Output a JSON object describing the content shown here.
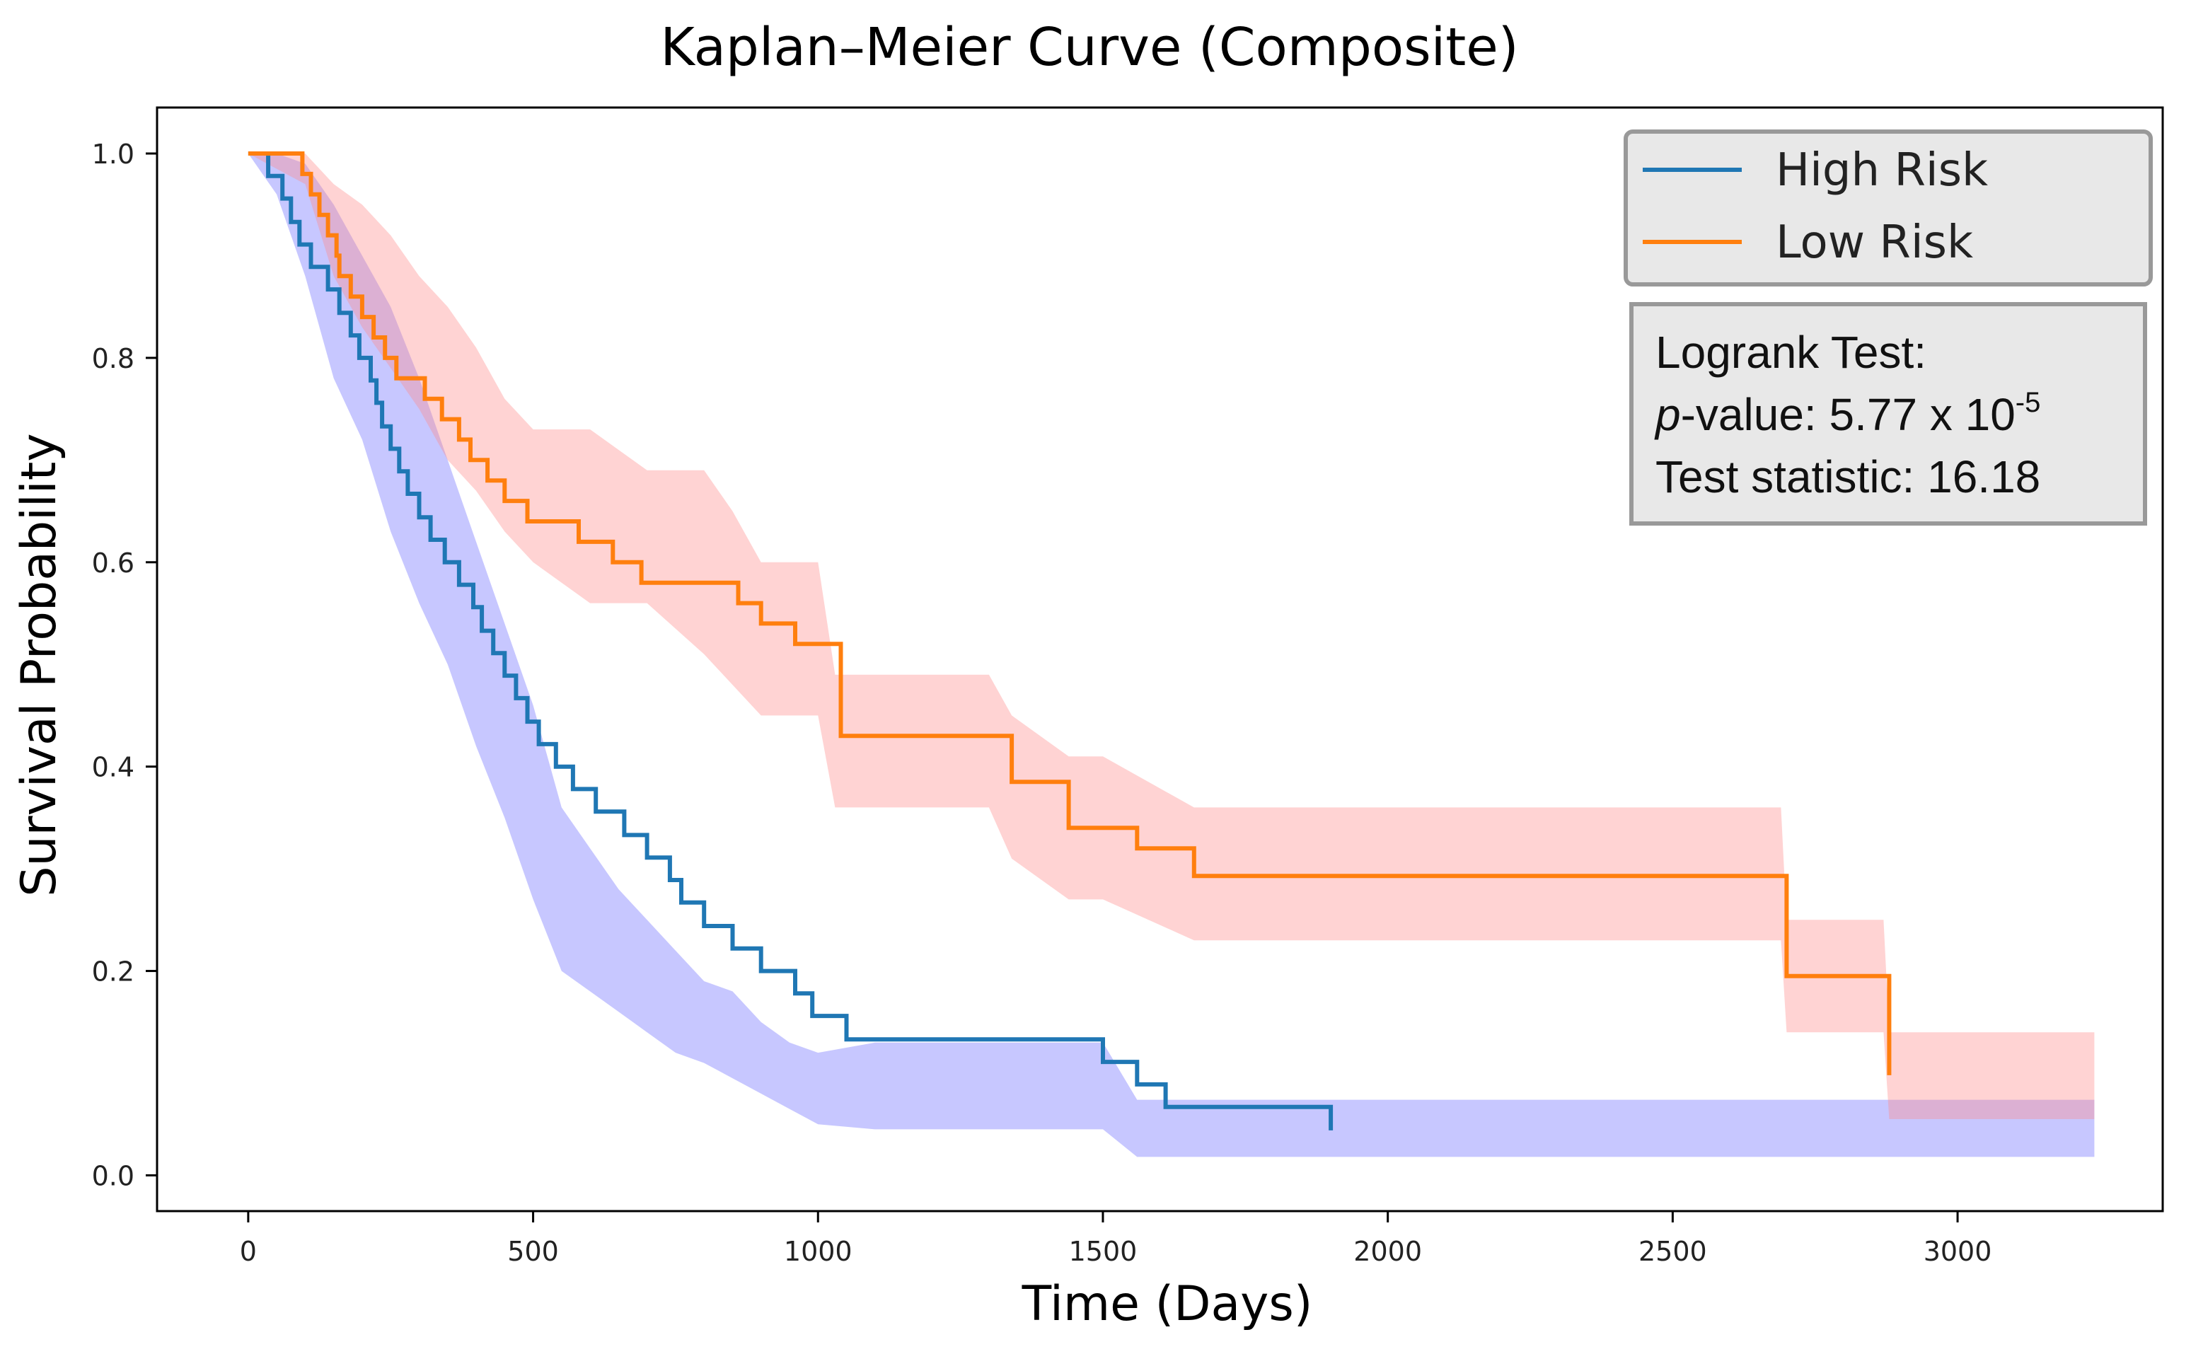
{
  "chart_data": {
    "type": "line",
    "title": "Kaplan–Meier Curve (Composite)",
    "xlabel": "Time (Days)",
    "ylabel": "Survival Probability",
    "xlim": [
      -160,
      3360
    ],
    "ylim": [
      -0.035,
      1.045
    ],
    "xticks": [
      0,
      500,
      1000,
      1500,
      2000,
      2500,
      3000
    ],
    "xtick_labels": [
      "0",
      "500",
      "1000",
      "1500",
      "2000",
      "2500",
      "3000"
    ],
    "yticks": [
      0.0,
      0.2,
      0.4,
      0.6,
      0.8,
      1.0
    ],
    "ytick_labels": [
      "0.0",
      "0.2",
      "0.4",
      "0.6",
      "0.8",
      "1.0"
    ],
    "legend_position": "top-right",
    "series": [
      {
        "name": "High Risk",
        "color": "#1f77b4",
        "band_color": "#6b6bff",
        "t": [
          0,
          35,
          60,
          75,
          90,
          110,
          140,
          160,
          180,
          195,
          215,
          225,
          235,
          250,
          265,
          280,
          300,
          320,
          345,
          370,
          395,
          410,
          430,
          450,
          470,
          490,
          510,
          540,
          570,
          610,
          660,
          700,
          740,
          760,
          800,
          850,
          900,
          960,
          990,
          1050,
          1500,
          1560,
          1610,
          1900
        ],
        "s": [
          1.0,
          0.978,
          0.956,
          0.933,
          0.911,
          0.889,
          0.867,
          0.844,
          0.822,
          0.8,
          0.778,
          0.756,
          0.733,
          0.711,
          0.689,
          0.667,
          0.644,
          0.622,
          0.6,
          0.578,
          0.556,
          0.533,
          0.511,
          0.489,
          0.467,
          0.444,
          0.422,
          0.4,
          0.378,
          0.356,
          0.333,
          0.311,
          0.289,
          0.267,
          0.244,
          0.222,
          0.2,
          0.178,
          0.156,
          0.133,
          0.111,
          0.089,
          0.067,
          0.044
        ],
        "ci_t": [
          0,
          50,
          100,
          150,
          200,
          250,
          300,
          350,
          400,
          450,
          500,
          550,
          600,
          650,
          700,
          750,
          800,
          850,
          900,
          950,
          1000,
          1100,
          1500,
          1560,
          3240
        ],
        "ci_upper": [
          1.0,
          1.0,
          0.99,
          0.95,
          0.9,
          0.85,
          0.78,
          0.7,
          0.62,
          0.54,
          0.46,
          0.36,
          0.32,
          0.28,
          0.25,
          0.22,
          0.19,
          0.18,
          0.15,
          0.13,
          0.12,
          0.13,
          0.13,
          0.074,
          0.074
        ],
        "ci_lower": [
          1.0,
          0.96,
          0.88,
          0.78,
          0.72,
          0.63,
          0.56,
          0.5,
          0.42,
          0.35,
          0.27,
          0.2,
          0.18,
          0.16,
          0.14,
          0.12,
          0.11,
          0.095,
          0.08,
          0.065,
          0.05,
          0.045,
          0.045,
          0.018,
          0.018
        ]
      },
      {
        "name": "Low Risk",
        "color": "#ff7f0e",
        "band_color": "#ff8c8c",
        "t": [
          0,
          95,
          110,
          125,
          140,
          155,
          160,
          180,
          200,
          220,
          240,
          260,
          310,
          340,
          370,
          390,
          420,
          450,
          490,
          580,
          640,
          690,
          860,
          900,
          960,
          1040,
          1060,
          1340,
          1440,
          1560,
          1660,
          2700,
          2800,
          2880
        ],
        "s": [
          1.0,
          0.98,
          0.96,
          0.94,
          0.92,
          0.9,
          0.88,
          0.86,
          0.84,
          0.82,
          0.8,
          0.78,
          0.76,
          0.74,
          0.72,
          0.7,
          0.68,
          0.66,
          0.64,
          0.62,
          0.6,
          0.58,
          0.56,
          0.54,
          0.52,
          0.43,
          0.43,
          0.385,
          0.34,
          0.32,
          0.293,
          0.195,
          0.195,
          0.098
        ],
        "ci_t": [
          0,
          100,
          150,
          200,
          250,
          300,
          350,
          400,
          450,
          500,
          600,
          700,
          800,
          850,
          900,
          1000,
          1030,
          1300,
          1340,
          1440,
          1500,
          1660,
          2690,
          2700,
          2870,
          2880,
          3240
        ],
        "ci_upper": [
          1.0,
          1.0,
          0.97,
          0.95,
          0.92,
          0.88,
          0.85,
          0.81,
          0.76,
          0.73,
          0.73,
          0.69,
          0.69,
          0.65,
          0.6,
          0.6,
          0.49,
          0.49,
          0.45,
          0.41,
          0.41,
          0.36,
          0.36,
          0.25,
          0.25,
          0.14,
          0.14
        ],
        "ci_lower": [
          1.0,
          0.97,
          0.88,
          0.83,
          0.79,
          0.75,
          0.7,
          0.67,
          0.63,
          0.6,
          0.56,
          0.56,
          0.51,
          0.48,
          0.45,
          0.45,
          0.36,
          0.36,
          0.31,
          0.27,
          0.27,
          0.23,
          0.23,
          0.14,
          0.14,
          0.055,
          0.055
        ]
      }
    ],
    "annotations": {
      "heading": "Logrank Test:",
      "pvalue_italic": "p",
      "pvalue_label": "-value: 5.77 x 10",
      "pvalue_exponent": "-5",
      "statistic": "Test statistic: 16.18"
    }
  }
}
